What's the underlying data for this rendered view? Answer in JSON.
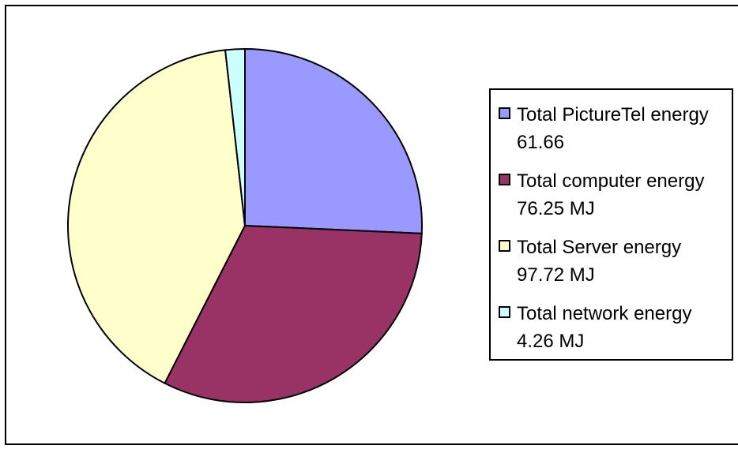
{
  "chart_data": {
    "type": "pie",
    "categories": [
      "Total PictureTel energy 61.66",
      "Total computer energy 76.25 MJ",
      "Total Server energy 97.72 MJ",
      "Total network energy 4.26 MJ"
    ],
    "values": [
      61.66,
      76.25,
      97.72,
      4.26
    ],
    "colors": [
      "#9999ff",
      "#993366",
      "#ffffcc",
      "#ccffff"
    ],
    "legend": "right"
  }
}
